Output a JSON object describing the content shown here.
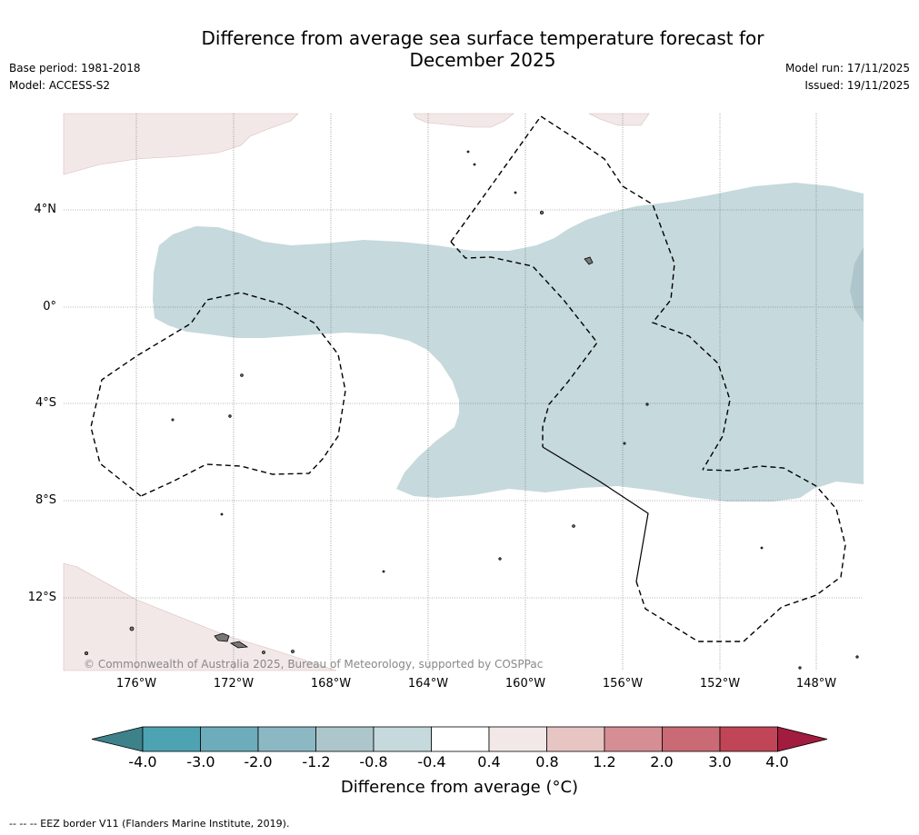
{
  "title": {
    "line1": "Difference from average sea surface temperature forecast for",
    "line2": "December 2025"
  },
  "meta": {
    "base_period": "Base period: 1981-2018",
    "model": "Model: ACCESS-S2",
    "model_run": "Model run: 17/11/2025",
    "issued": "Issued: 19/11/2025"
  },
  "map": {
    "lat_labels": [
      "4°N",
      "0°",
      "4°S",
      "8°S",
      "12°S"
    ],
    "lon_labels": [
      "176°W",
      "172°W",
      "168°W",
      "164°W",
      "160°W",
      "156°W",
      "152°W",
      "148°W"
    ],
    "copyright": "© Commonwealth of Australia 2025, Bureau of Meteorology, supported by COSPPac",
    "anomaly_colors": {
      "band_neg": "#c6d9dc",
      "band_neg_deep": "#aec6cb",
      "band_pos": "#f3e8e8"
    }
  },
  "colorbar": {
    "ticks": [
      "-4.0",
      "-3.0",
      "-2.0",
      "-1.2",
      "-0.8",
      "-0.4",
      "0.4",
      "0.8",
      "1.2",
      "2.0",
      "3.0",
      "4.0"
    ],
    "colors": [
      "#3d818b",
      "#4ea3b3",
      "#6cacbb",
      "#8cb8c4",
      "#adc6cc",
      "#c6d9dc",
      "#ffffff",
      "#f3e8e8",
      "#e7c5c3",
      "#d48e94",
      "#c96a74",
      "#c04657",
      "#a11c3e"
    ],
    "title": "Difference from average (°C)"
  },
  "footer": "--  --  -- EEZ border V11 (Flanders Marine Institute, 2019)."
}
